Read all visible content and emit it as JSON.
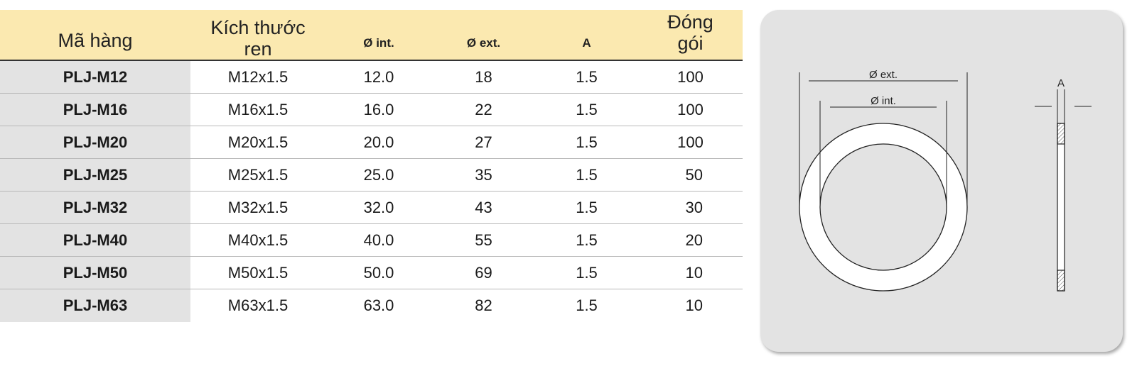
{
  "table": {
    "headers": {
      "code": "Mã hàng",
      "size_line1": "Kích thước",
      "size_line2": "ren",
      "int": "Ø int.",
      "ext": "Ø ext.",
      "a": "A",
      "pack_line1": "Đóng",
      "pack_line2": "gói"
    },
    "rows": [
      {
        "code": "PLJ-M12",
        "size": "M12x1.5",
        "int": "12.0",
        "ext": "18",
        "a": "1.5",
        "pack": "100"
      },
      {
        "code": "PLJ-M16",
        "size": "M16x1.5",
        "int": "16.0",
        "ext": "22",
        "a": "1.5",
        "pack": "100"
      },
      {
        "code": "PLJ-M20",
        "size": "M20x1.5",
        "int": "20.0",
        "ext": "27",
        "a": "1.5",
        "pack": "100"
      },
      {
        "code": "PLJ-M25",
        "size": "M25x1.5",
        "int": "25.0",
        "ext": "35",
        "a": "1.5",
        "pack": "50"
      },
      {
        "code": "PLJ-M32",
        "size": "M32x1.5",
        "int": "32.0",
        "ext": "43",
        "a": "1.5",
        "pack": "30"
      },
      {
        "code": "PLJ-M40",
        "size": "M40x1.5",
        "int": "40.0",
        "ext": "55",
        "a": "1.5",
        "pack": "20"
      },
      {
        "code": "PLJ-M50",
        "size": "M50x1.5",
        "int": "50.0",
        "ext": "69",
        "a": "1.5",
        "pack": "10"
      },
      {
        "code": "PLJ-M63",
        "size": "M63x1.5",
        "int": "63.0",
        "ext": "82",
        "a": "1.5",
        "pack": "10"
      }
    ]
  },
  "drawing": {
    "ext_label": "Ø ext.",
    "int_label": "Ø int.",
    "a_label": "A"
  },
  "colors": {
    "header_bg": "#fbe9b0",
    "code_col_bg": "#e3e3e3",
    "panel_bg": "#e3e3e3"
  }
}
